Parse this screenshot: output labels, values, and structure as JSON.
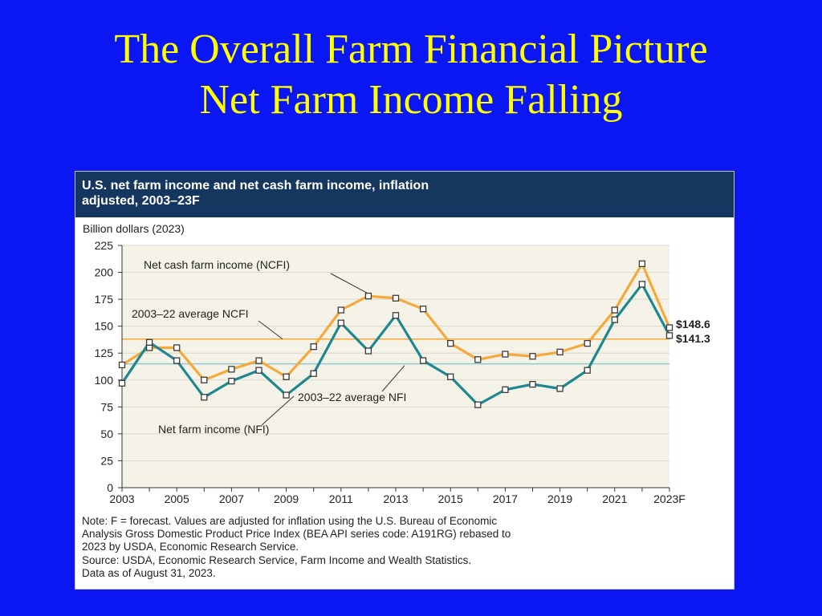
{
  "slide": {
    "title_line1": "The Overall Farm Financial Picture",
    "title_line2": "Net Farm Income Falling"
  },
  "figure": {
    "header_line1": "U.S. net farm income and net cash farm income, inflation",
    "header_line2": "adjusted, 2003–23F",
    "note_lines": [
      "Note: F = forecast. Values are adjusted for inflation using the U.S. Bureau of Economic",
      "Analysis Gross Domestic Product Price Index (BEA API series code: A191RG) rebased to",
      "2023 by USDA, Economic Research Service.",
      "Source: USDA, Economic Research Service, Farm Income and Wealth Statistics.",
      "Data as of August 31, 2023."
    ]
  },
  "chart_data": {
    "type": "line",
    "title": "U.S. net farm income and net cash farm income, inflation adjusted, 2003–23F",
    "ylabel": "Billion dollars (2023)",
    "xlabel": "",
    "ylim": [
      0,
      225
    ],
    "yticks": [
      0,
      25,
      50,
      75,
      100,
      125,
      150,
      175,
      200,
      225
    ],
    "x": [
      "2003",
      "2004",
      "2005",
      "2006",
      "2007",
      "2008",
      "2009",
      "2010",
      "2011",
      "2012",
      "2013",
      "2014",
      "2015",
      "2016",
      "2017",
      "2018",
      "2019",
      "2020",
      "2021",
      "2022",
      "2023F"
    ],
    "xtick_labels": [
      "2003",
      "2005",
      "2007",
      "2009",
      "2011",
      "2013",
      "2015",
      "2017",
      "2019",
      "2021",
      "2023F"
    ],
    "grid": true,
    "series": [
      {
        "name": "Net cash farm income (NCFI)",
        "color": "#f5a93a",
        "values": [
          114,
          130,
          130,
          100,
          110,
          118,
          103,
          131,
          165,
          178,
          176,
          166,
          134,
          119,
          124,
          122,
          126,
          134,
          165,
          208,
          148.6
        ]
      },
      {
        "name": "Net farm income (NFI)",
        "color": "#1e8790",
        "values": [
          97,
          135,
          118,
          84,
          99,
          109,
          86,
          106,
          153,
          127,
          160,
          118,
          103,
          77,
          91,
          96,
          92,
          109,
          156,
          189,
          141.3
        ]
      }
    ],
    "reference_lines": [
      {
        "name": "2003–22 average NCFI",
        "value": 138,
        "color": "#f5a93a"
      },
      {
        "name": "2003–22 average NFI",
        "value": 115,
        "color": "#8fc9cf"
      }
    ],
    "end_labels": [
      "$148.6",
      "$141.3"
    ]
  }
}
